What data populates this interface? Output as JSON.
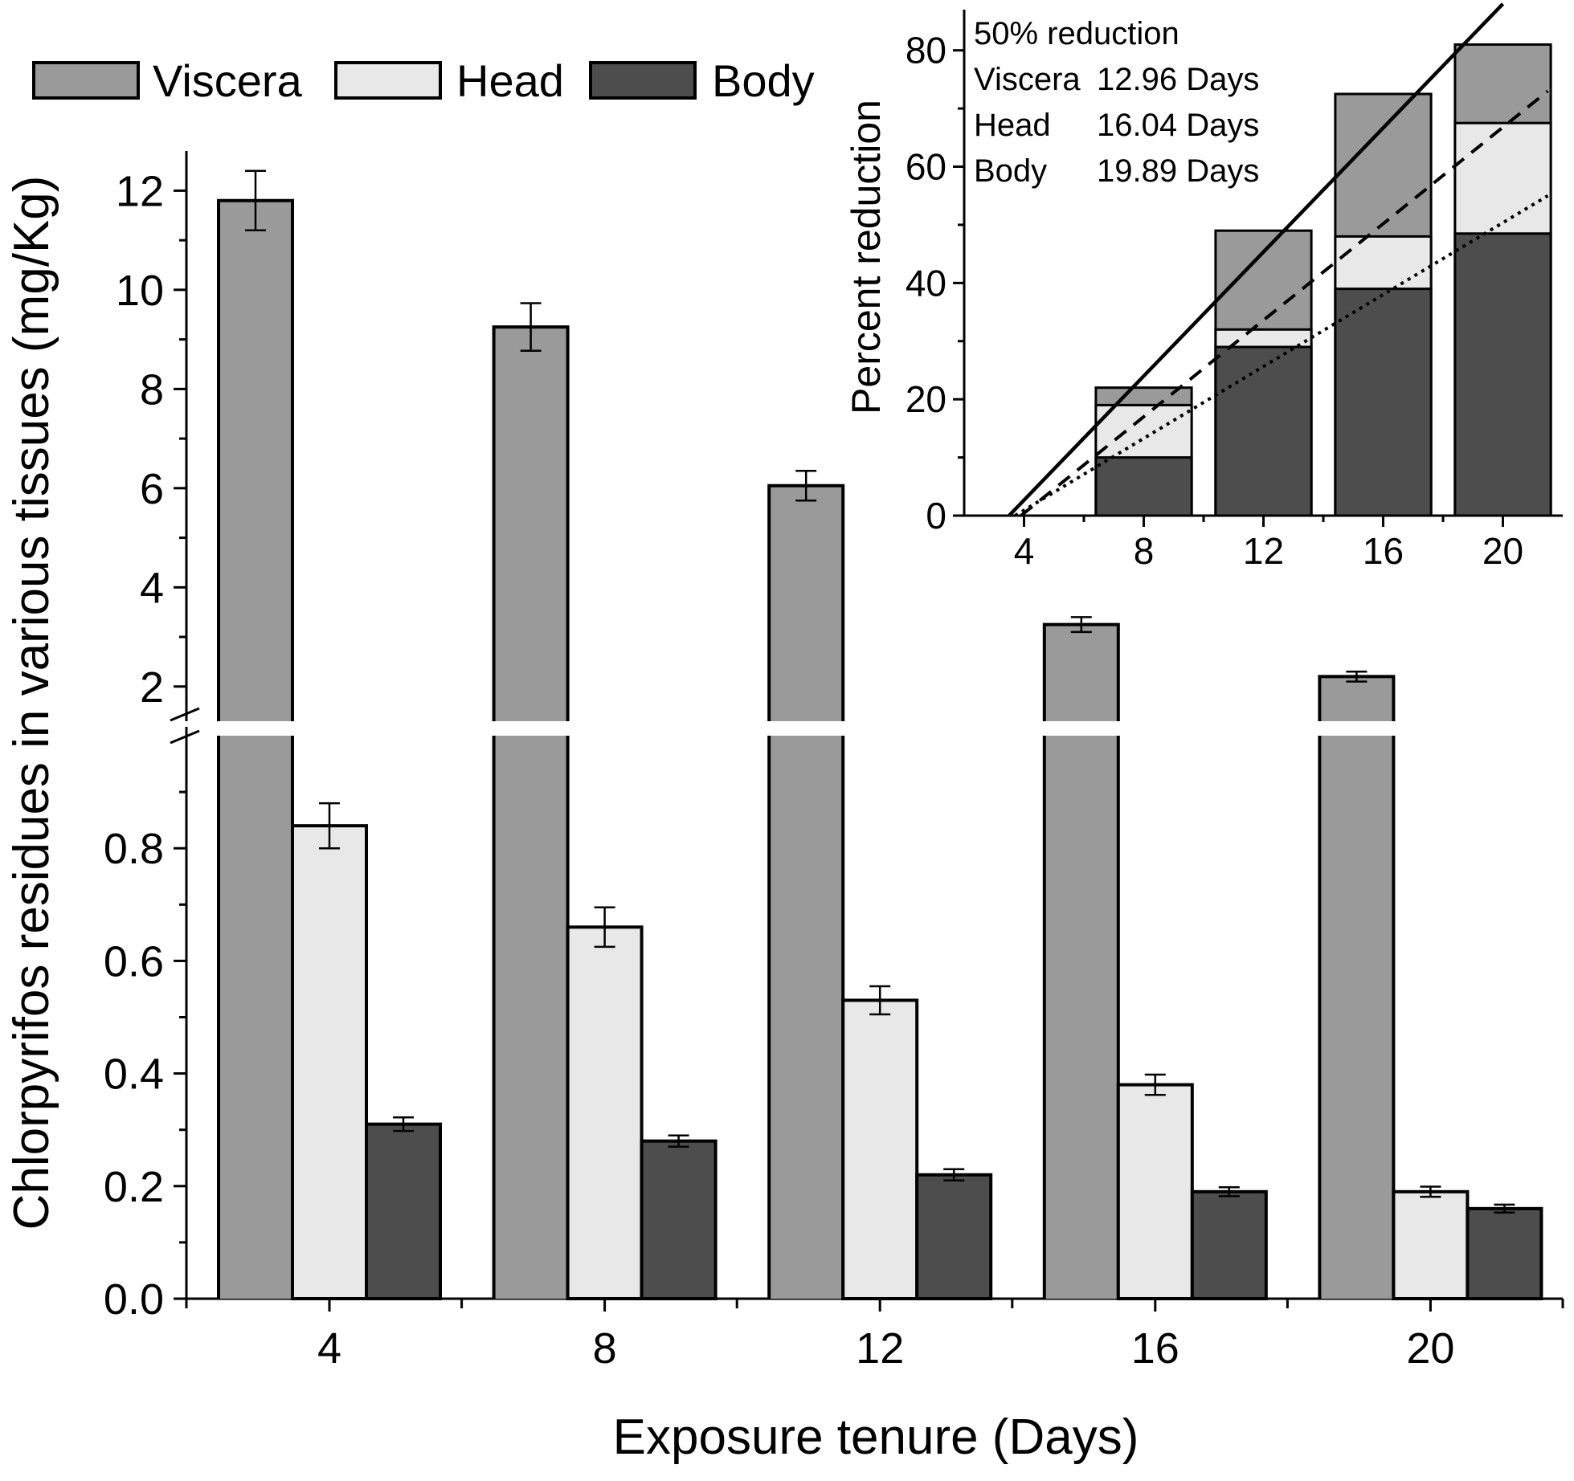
{
  "chart_data": [
    {
      "type": "bar",
      "title": "",
      "xlabel": "Exposure tenure (Days)",
      "ylabel": "Chlorpyrifos residues in various tissues (mg/Kg)",
      "categories": [
        "4",
        "8",
        "12",
        "16",
        "20"
      ],
      "series": [
        {
          "name": "Viscera",
          "values": [
            11.8,
            9.25,
            6.05,
            3.25,
            2.2
          ],
          "errors": [
            0.6,
            0.48,
            0.3,
            0.15,
            0.1
          ]
        },
        {
          "name": "Head",
          "values": [
            0.84,
            0.66,
            0.53,
            0.38,
            0.19
          ],
          "errors": [
            0.04,
            0.035,
            0.025,
            0.018,
            0.009
          ]
        },
        {
          "name": "Body",
          "values": [
            0.31,
            0.28,
            0.22,
            0.19,
            0.16
          ],
          "errors": [
            0.012,
            0.01,
            0.01,
            0.008,
            0.007
          ]
        }
      ],
      "y_axis_break": true,
      "ylim_lower": [
        0,
        1.0
      ],
      "ylim_upper": [
        1.3,
        12.8
      ],
      "yticks_lower": [
        "0.0",
        "0.2",
        "0.4",
        "0.6",
        "0.8"
      ],
      "yticks_upper": [
        "2",
        "4",
        "6",
        "8",
        "10",
        "12"
      ],
      "legend": [
        "Viscera",
        "Head",
        "Body"
      ],
      "legend_position": "top-left",
      "colors": {
        "Viscera": "#9a9a9a",
        "Head": "#e8e8e8",
        "Body": "#4d4d4d"
      }
    },
    {
      "type": "bar",
      "title": "",
      "xlabel": "",
      "ylabel": "Percent reduction",
      "categories": [
        "8",
        "12",
        "16",
        "20"
      ],
      "xticks": [
        "4",
        "8",
        "12",
        "16",
        "20"
      ],
      "xlim": [
        2.0,
        22.0
      ],
      "ylim": [
        0,
        87
      ],
      "yticks": [
        "0",
        "20",
        "40",
        "60",
        "80"
      ],
      "stacked_overlay": true,
      "series": [
        {
          "name": "Viscera",
          "values": [
            22,
            49,
            72.5,
            81
          ]
        },
        {
          "name": "Head",
          "values": [
            19,
            32,
            48,
            67.5
          ]
        },
        {
          "name": "Body",
          "values": [
            10,
            29,
            39,
            48.5
          ]
        }
      ],
      "trend_lines": [
        {
          "name": "Viscera",
          "style": "solid",
          "x": [
            3.5,
            20
          ],
          "y": [
            0,
            88
          ]
        },
        {
          "name": "Head",
          "style": "dashed",
          "x": [
            3.9,
            21.5
          ],
          "y": [
            0,
            73
          ]
        },
        {
          "name": "Body",
          "style": "dotted",
          "x": [
            3.7,
            21.5
          ],
          "y": [
            0,
            55
          ]
        }
      ],
      "annotation": {
        "heading": "50% reduction",
        "rows": [
          {
            "label": "Viscera",
            "value": "12.96 Days"
          },
          {
            "label": "Head",
            "value": "16.04 Days"
          },
          {
            "label": "Body",
            "value": "19.89 Days"
          }
        ]
      },
      "legend_position": "inset-top-right"
    }
  ]
}
